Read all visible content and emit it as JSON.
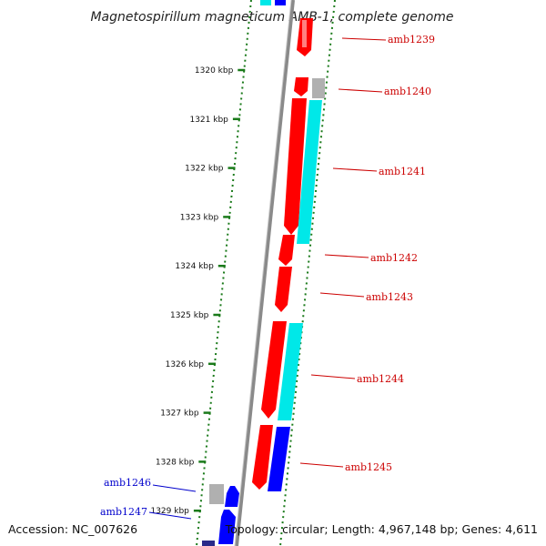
{
  "title": "Magnetospirillum magneticum AMB-1, complete genome",
  "footer": {
    "accession": "Accession: NC_007626",
    "summary": "Topology: circular; Length: 4,967,148 bp; Genes: 4,611"
  },
  "colors": {
    "forward_gene": "#ff0000",
    "reverse_gene": "#0000ff",
    "cds_feature": "#00e8e8",
    "other_feature": "#b0b0b0",
    "forward_label": "#cc0000",
    "reverse_label": "#0000cc",
    "ticks": "#1a7a1a",
    "backbone": "#808080"
  },
  "ticks": [
    {
      "label": "1320 kbp",
      "kbp": 1320
    },
    {
      "label": "1321 kbp",
      "kbp": 1321
    },
    {
      "label": "1322 kbp",
      "kbp": 1322
    },
    {
      "label": "1323 kbp",
      "kbp": 1323
    },
    {
      "label": "1324 kbp",
      "kbp": 1324
    },
    {
      "label": "1325 kbp",
      "kbp": 1325
    },
    {
      "label": "1326 kbp",
      "kbp": 1326
    },
    {
      "label": "1327 kbp",
      "kbp": 1327
    },
    {
      "label": "1328 kbp",
      "kbp": 1328
    },
    {
      "label": "1329 kbp",
      "kbp": 1329
    }
  ],
  "genes": [
    {
      "name": "amb1239",
      "strand": "+"
    },
    {
      "name": "amb1240",
      "strand": "+"
    },
    {
      "name": "amb1241",
      "strand": "+"
    },
    {
      "name": "amb1242",
      "strand": "+"
    },
    {
      "name": "amb1243",
      "strand": "+"
    },
    {
      "name": "amb1244",
      "strand": "+"
    },
    {
      "name": "amb1245",
      "strand": "+"
    },
    {
      "name": "amb1246",
      "strand": "-"
    },
    {
      "name": "amb1247",
      "strand": "-"
    }
  ]
}
